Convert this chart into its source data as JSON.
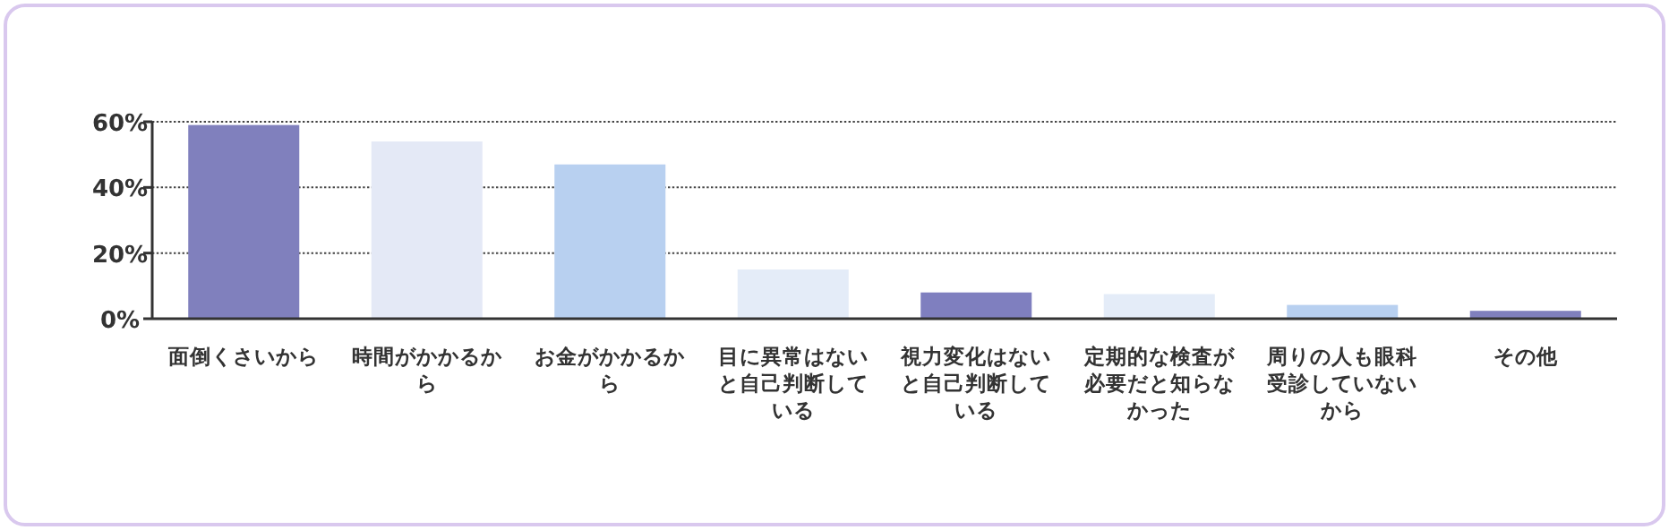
{
  "chart_data": {
    "type": "bar",
    "categories": [
      "面倒くさいから",
      "時間がかかるから",
      "お金がかかるから",
      "目に異常はないと自己判断している",
      "視力変化はないと自己判断している",
      "定期的な検査が必要だと知らなかった",
      "周りの人も眼科受診していないから",
      "その他"
    ],
    "values": [
      59,
      54,
      47,
      15,
      8,
      7.5,
      4.2,
      2.4
    ],
    "colors": [
      "#8080bd",
      "#e4e9f6",
      "#b8d0f0",
      "#e4ecf8",
      "#7f7fbf",
      "#e4ecf8",
      "#b8d0f0",
      "#8080bd"
    ],
    "ylim": [
      0,
      60
    ],
    "yticks": [
      {
        "value": 0,
        "label": "0%"
      },
      {
        "value": 20,
        "label": "20%"
      },
      {
        "value": 40,
        "label": "40%"
      },
      {
        "value": 60,
        "label": "60%"
      }
    ],
    "grid": "y"
  }
}
